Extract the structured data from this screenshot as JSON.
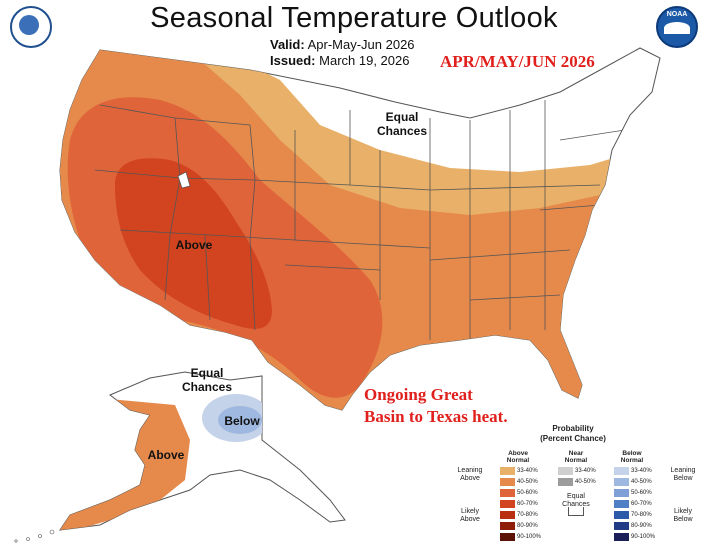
{
  "header": {
    "title": "Seasonal Temperature Outlook",
    "valid_label": "Valid:",
    "valid_value": "Apr-May-Jun 2026",
    "issued_label": "Issued:",
    "issued_value": "March 19, 2026",
    "season_stamp": "APR/MAY/JUN 2026"
  },
  "logos": {
    "left": "doc-seal",
    "right": "NOAA"
  },
  "map": {
    "labels": {
      "equal_chances_conus": [
        "Equal",
        "Chances"
      ],
      "above_conus": "Above",
      "equal_chances_alaska": [
        "Equal",
        "Chances"
      ],
      "below_alaska": "Below",
      "above_alaska": "Above"
    },
    "annotation": [
      "Ongoing Great",
      "Basin to Texas heat."
    ],
    "colors": {
      "above_33_40": "#e8b068",
      "above_40_50": "#e68a4c",
      "above_50_60": "#e0643a",
      "above_60_70": "#d2441f",
      "near_normal": "#c8c8c8",
      "below_33_40": "#b8c8e4",
      "below_40_50": "#8ba8d8",
      "equal_chances": "#ffffff",
      "border": "#555555"
    }
  },
  "legend": {
    "title": [
      "Probability",
      "(Percent Chance)"
    ],
    "above": {
      "heading": [
        "Above",
        "Normal"
      ],
      "rows": [
        {
          "range": "33-40%",
          "color": "#e8b068"
        },
        {
          "range": "40-50%",
          "color": "#e68a4c"
        },
        {
          "range": "50-60%",
          "color": "#e0643a"
        },
        {
          "range": "60-70%",
          "color": "#d2441f"
        },
        {
          "range": "70-80%",
          "color": "#b8300f"
        },
        {
          "range": "80-90%",
          "color": "#8e1e0a"
        },
        {
          "range": "90-100%",
          "color": "#5c1206"
        }
      ]
    },
    "near": {
      "heading": [
        "Near",
        "Normal"
      ],
      "rows": [
        {
          "range": "33-40%",
          "color": "#cfcfcf"
        },
        {
          "range": "40-50%",
          "color": "#9c9c9c"
        }
      ]
    },
    "below": {
      "heading": [
        "Below",
        "Normal"
      ],
      "rows": [
        {
          "range": "33-40%",
          "color": "#c4d2ea"
        },
        {
          "range": "40-50%",
          "color": "#9fb8e0"
        },
        {
          "range": "50-60%",
          "color": "#7ea0d6"
        },
        {
          "range": "60-70%",
          "color": "#4f7fc4"
        },
        {
          "range": "70-80%",
          "color": "#2c5aa8"
        },
        {
          "range": "80-90%",
          "color": "#213b84"
        },
        {
          "range": "90-100%",
          "color": "#1a1f5a"
        }
      ]
    },
    "equal_chances": [
      "Equal",
      "Chances"
    ],
    "side": {
      "leaning_above": [
        "Leaning",
        "Above"
      ],
      "likely_above": [
        "Likely",
        "Above"
      ],
      "leaning_below": [
        "Leaning",
        "Below"
      ],
      "likely_below": [
        "Likely",
        "Below"
      ]
    }
  }
}
